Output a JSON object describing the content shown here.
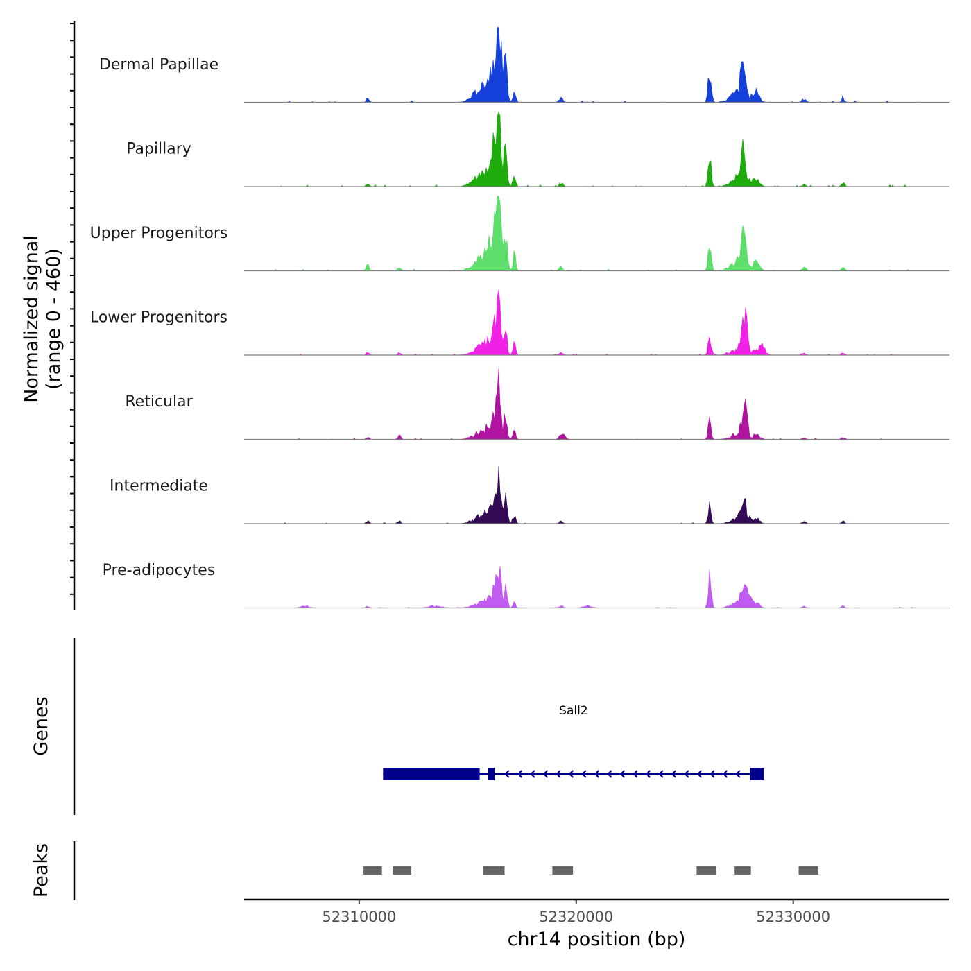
{
  "chart_data": {
    "type": "area",
    "title": "",
    "chromosome": "chr14",
    "xlabel": "chr14 position (bp)",
    "ylabel_line1": "Normalized signal",
    "ylabel_line2": "(range 0 - 460)",
    "y_range": [
      0,
      460
    ],
    "x_range": [
      52304700,
      52337200
    ],
    "x_ticks": [
      52310000,
      52320000,
      52330000
    ],
    "x_tick_labels": [
      "52310000",
      "52320000",
      "52330000"
    ],
    "genes_label": "Genes",
    "peaks_label": "Peaks",
    "common_peaks": [
      {
        "center": 52316300,
        "width": 180,
        "height": 0.45
      },
      {
        "center": 52316450,
        "width": 70,
        "height": 1.0
      },
      {
        "center": 52316000,
        "width": 350,
        "height": 0.25
      },
      {
        "center": 52316750,
        "width": 70,
        "height": 0.55
      },
      {
        "center": 52317150,
        "width": 60,
        "height": 0.22
      },
      {
        "center": 52315400,
        "width": 300,
        "height": 0.08
      },
      {
        "center": 52326150,
        "width": 70,
        "height": 0.4
      },
      {
        "center": 52327700,
        "width": 120,
        "height": 0.42
      },
      {
        "center": 52327400,
        "width": 300,
        "height": 0.12
      },
      {
        "center": 52328300,
        "width": 150,
        "height": 0.12
      },
      {
        "center": 52310400,
        "width": 70,
        "height": 0.05
      },
      {
        "center": 52319300,
        "width": 90,
        "height": 0.05
      },
      {
        "center": 52330500,
        "width": 90,
        "height": 0.04
      },
      {
        "center": 52332300,
        "width": 70,
        "height": 0.06
      }
    ],
    "series": [
      {
        "name": "Dermal Papillae",
        "color": "#1540dc",
        "scale": 1.0,
        "extra": [
          {
            "center": 52328200,
            "width": 110,
            "height": 0.06
          }
        ]
      },
      {
        "name": "Papillary",
        "color": "#1eab0c",
        "scale": 0.9,
        "extra": [
          {
            "center": 52328000,
            "width": 180,
            "height": 0.05
          }
        ]
      },
      {
        "name": "Upper Progenitors",
        "color": "#5ddd6a",
        "scale": 0.95,
        "extra": [
          {
            "center": 52311850,
            "width": 70,
            "height": 0.06
          },
          {
            "center": 52310400,
            "width": 70,
            "height": 0.04
          }
        ]
      },
      {
        "name": "Lower Progenitors",
        "color": "#f020e6",
        "scale": 0.6,
        "extra": [
          {
            "center": 52327800,
            "width": 110,
            "height": 0.45
          },
          {
            "center": 52328600,
            "width": 120,
            "height": 0.2
          },
          {
            "center": 52311850,
            "width": 70,
            "height": 0.06
          }
        ]
      },
      {
        "name": "Reticular",
        "color": "#b0139f",
        "scale": 0.55,
        "extra": [
          {
            "center": 52327800,
            "width": 110,
            "height": 0.4
          },
          {
            "center": 52311850,
            "width": 70,
            "height": 0.1
          },
          {
            "center": 52319400,
            "width": 120,
            "height": 0.08
          }
        ]
      },
      {
        "name": "Intermediate",
        "color": "#330a55",
        "scale": 0.55,
        "extra": [
          {
            "center": 52327900,
            "width": 150,
            "height": 0.12
          },
          {
            "center": 52311850,
            "width": 70,
            "height": 0.07
          }
        ]
      },
      {
        "name": "Pre-adipocytes",
        "color": "#c15cf0",
        "scale": 0.45,
        "extra": [
          {
            "center": 52326150,
            "width": 70,
            "height": 0.5
          },
          {
            "center": 52327900,
            "width": 200,
            "height": 0.25
          },
          {
            "center": 52307500,
            "width": 200,
            "height": 0.06
          },
          {
            "center": 52313500,
            "width": 300,
            "height": 0.06
          },
          {
            "center": 52320500,
            "width": 200,
            "height": 0.06
          }
        ]
      }
    ],
    "gene": {
      "name": "Sall2",
      "start": 52311100,
      "end": 52328650,
      "strand": "-",
      "exons": [
        {
          "start": 52311100,
          "end": 52315550
        },
        {
          "start": 52315950,
          "end": 52316250
        },
        {
          "start": 52328000,
          "end": 52328650
        }
      ],
      "color": "#00008b"
    },
    "peaks": [
      {
        "start": 52310200,
        "end": 52311050
      },
      {
        "start": 52311550,
        "end": 52312400
      },
      {
        "start": 52315700,
        "end": 52316700
      },
      {
        "start": 52318900,
        "end": 52319850
      },
      {
        "start": 52325550,
        "end": 52326450
      },
      {
        "start": 52327300,
        "end": 52328050
      },
      {
        "start": 52330250,
        "end": 52331150
      }
    ],
    "peak_color": "#666666"
  }
}
